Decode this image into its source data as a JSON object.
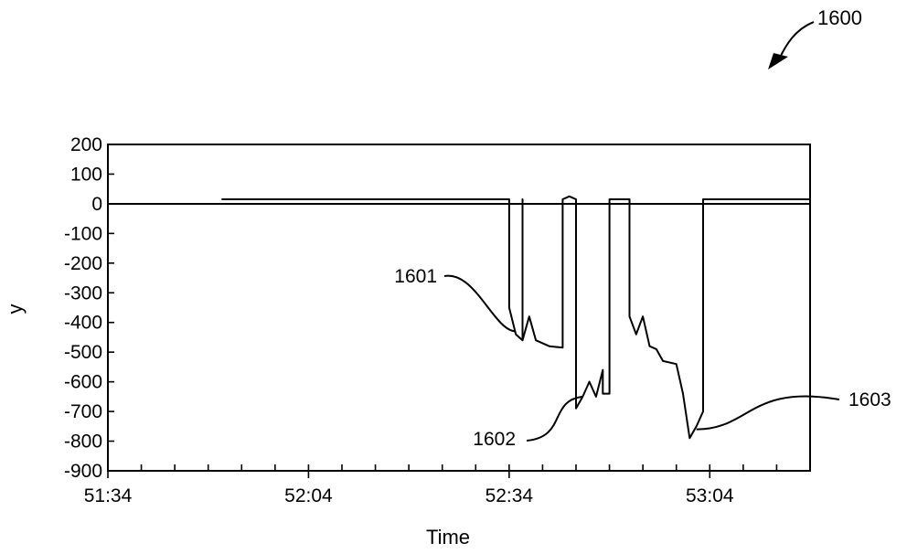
{
  "figure_label": "1600",
  "chart_data": {
    "type": "line",
    "title": "",
    "xlabel": "Time",
    "ylabel": "y",
    "xlim": [
      "51:34",
      "53:19"
    ],
    "ylim": [
      -900,
      200
    ],
    "yticks": [
      200,
      100,
      0,
      -100,
      -200,
      -300,
      -400,
      -500,
      -600,
      -700,
      -800,
      -900
    ],
    "xticks": [
      "51:34",
      "52:04",
      "52:34",
      "53:04"
    ],
    "grid": false,
    "series": [
      {
        "points": [
          [
            "51:51",
            15
          ],
          [
            "52:34",
            15
          ],
          [
            "52:34",
            -350
          ],
          [
            "52:35",
            -440
          ],
          [
            "52:36",
            -460
          ],
          [
            "52:36",
            15
          ],
          [
            "52:36",
            -460
          ],
          [
            "52:37",
            -380
          ],
          [
            "52:38",
            -460
          ],
          [
            "52:40",
            -480
          ],
          [
            "52:42",
            -485
          ],
          [
            "52:42",
            15
          ],
          [
            "52:43",
            25
          ],
          [
            "52:44",
            15
          ],
          [
            "52:44",
            -690
          ],
          [
            "52:45",
            -650
          ],
          [
            "52:46",
            -600
          ],
          [
            "52:47",
            -650
          ],
          [
            "52:48",
            -560
          ],
          [
            "52:48",
            -640
          ],
          [
            "52:49",
            -640
          ],
          [
            "52:49",
            15
          ],
          [
            "52:52",
            15
          ],
          [
            "52:52",
            -380
          ],
          [
            "52:53",
            -440
          ],
          [
            "52:54",
            -380
          ],
          [
            "52:55",
            -480
          ],
          [
            "52:56",
            -490
          ],
          [
            "52:57",
            -530
          ],
          [
            "52:59",
            -540
          ],
          [
            "53:00",
            -640
          ],
          [
            "53:01",
            -790
          ],
          [
            "53:02",
            -750
          ],
          [
            "53:03",
            -700
          ],
          [
            "53:03",
            15
          ],
          [
            "53:19",
            15
          ]
        ]
      }
    ],
    "annotations": [
      {
        "label": "1601",
        "x": "52:35",
        "y": -430
      },
      {
        "label": "1602",
        "x": "52:45",
        "y": -650
      },
      {
        "label": "1603",
        "x": "53:02",
        "y": -760
      }
    ]
  }
}
